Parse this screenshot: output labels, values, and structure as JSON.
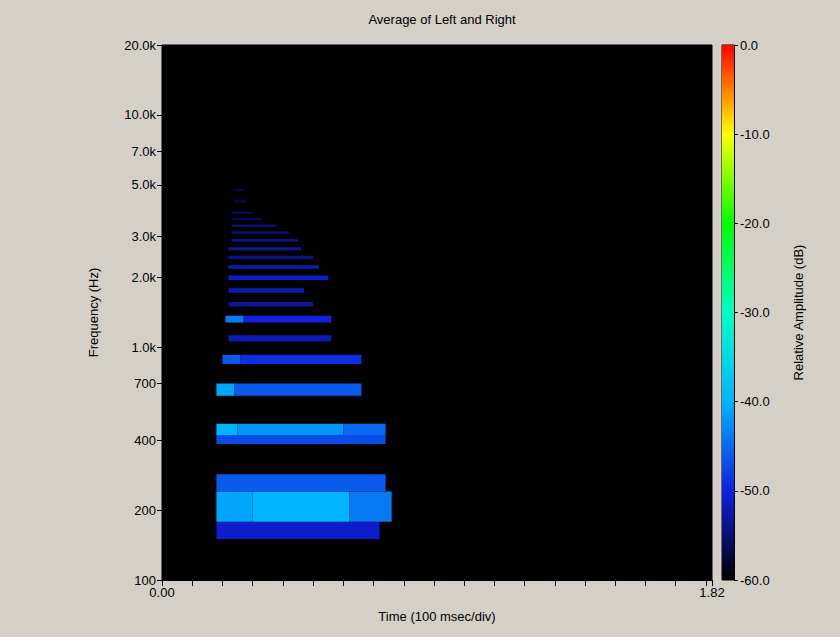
{
  "chart_data": {
    "type": "heatmap",
    "title": "Average of Left and Right",
    "x_label": "Time (100 msec/div)",
    "y_label": "Frequency (Hz)",
    "xlim": [
      0,
      1.82
    ],
    "xticks": [
      {
        "value": 0,
        "label": "0.00"
      },
      {
        "value": 1.82,
        "label": "1.82"
      }
    ],
    "xminorticks": [
      0.1,
      0.2,
      0.3,
      0.4,
      0.5,
      0.6,
      0.7,
      0.8,
      0.9,
      1.0,
      1.1,
      1.2,
      1.3,
      1.4,
      1.5,
      1.6,
      1.7,
      1.8
    ],
    "ylim": [
      100,
      20000
    ],
    "yticks": [
      100,
      200,
      400,
      700,
      {
        "value": 1000,
        "label": "1.0k"
      },
      {
        "value": 2000,
        "label": "2.0k"
      },
      {
        "value": 3000,
        "label": "3.0k"
      },
      {
        "value": 5000,
        "label": "5.0k"
      },
      {
        "value": 7000,
        "label": "7.0k"
      },
      {
        "value": 10000,
        "label": "10.0k"
      },
      {
        "value": 20000,
        "label": "20.0k"
      }
    ],
    "log": "y",
    "grid": false,
    "cells": [
      {
        "start": 0.18,
        "end": 0.72,
        "low": 150,
        "high": 178,
        "db": -51
      },
      {
        "start": 0.18,
        "end": 0.3,
        "low": 178,
        "high": 240,
        "db": -41
      },
      {
        "start": 0.3,
        "end": 0.62,
        "low": 178,
        "high": 240,
        "db": -40
      },
      {
        "start": 0.62,
        "end": 0.76,
        "low": 178,
        "high": 240,
        "db": -44
      },
      {
        "start": 0.18,
        "end": 0.74,
        "low": 240,
        "high": 285,
        "db": -46
      },
      {
        "start": 0.18,
        "end": 0.74,
        "low": 385,
        "high": 420,
        "db": -47
      },
      {
        "start": 0.18,
        "end": 0.25,
        "low": 420,
        "high": 470,
        "db": -40
      },
      {
        "start": 0.25,
        "end": 0.6,
        "low": 420,
        "high": 470,
        "db": -42
      },
      {
        "start": 0.6,
        "end": 0.74,
        "low": 420,
        "high": 470,
        "db": -45
      },
      {
        "start": 0.18,
        "end": 0.24,
        "low": 620,
        "high": 700,
        "db": -41
      },
      {
        "start": 0.24,
        "end": 0.66,
        "low": 620,
        "high": 700,
        "db": -46
      },
      {
        "start": 0.2,
        "end": 0.26,
        "low": 850,
        "high": 930,
        "db": -46
      },
      {
        "start": 0.26,
        "end": 0.66,
        "low": 850,
        "high": 930,
        "db": -49
      },
      {
        "start": 0.22,
        "end": 0.56,
        "low": 1060,
        "high": 1130,
        "db": -52
      },
      {
        "start": 0.21,
        "end": 0.27,
        "low": 1280,
        "high": 1370,
        "db": -44
      },
      {
        "start": 0.27,
        "end": 0.56,
        "low": 1280,
        "high": 1370,
        "db": -50
      },
      {
        "start": 0.22,
        "end": 0.5,
        "low": 1500,
        "high": 1570,
        "db": -53
      },
      {
        "start": 0.22,
        "end": 0.47,
        "low": 1720,
        "high": 1800,
        "db": -52
      },
      {
        "start": 0.22,
        "end": 0.55,
        "low": 1950,
        "high": 2040,
        "db": -51
      },
      {
        "start": 0.22,
        "end": 0.52,
        "low": 2180,
        "high": 2260,
        "db": -52
      },
      {
        "start": 0.22,
        "end": 0.5,
        "low": 2400,
        "high": 2480,
        "db": -54
      },
      {
        "start": 0.22,
        "end": 0.46,
        "low": 2620,
        "high": 2700,
        "db": -53
      },
      {
        "start": 0.23,
        "end": 0.45,
        "low": 2850,
        "high": 2930,
        "db": -54
      },
      {
        "start": 0.23,
        "end": 0.42,
        "low": 3080,
        "high": 3160,
        "db": -55
      },
      {
        "start": 0.23,
        "end": 0.38,
        "low": 3300,
        "high": 3380,
        "db": -55
      },
      {
        "start": 0.23,
        "end": 0.33,
        "low": 3530,
        "high": 3610,
        "db": -56
      },
      {
        "start": 0.23,
        "end": 0.3,
        "low": 3760,
        "high": 3840,
        "db": -56
      },
      {
        "start": 0.24,
        "end": 0.28,
        "low": 4200,
        "high": 4300,
        "db": -57
      },
      {
        "start": 0.24,
        "end": 0.27,
        "low": 4700,
        "high": 4800,
        "db": -57
      }
    ],
    "colorbar": {
      "title": "Relative Amplitude (dB)",
      "range": [
        -60,
        0
      ],
      "ticks": [
        {
          "value": 0,
          "label": "0.0"
        },
        {
          "value": -10,
          "label": "-10.0"
        },
        {
          "value": -20,
          "label": "-20.0"
        },
        {
          "value": -30,
          "label": "-30.0"
        },
        {
          "value": -40,
          "label": "-40.0"
        },
        {
          "value": -50,
          "label": "-50.0"
        },
        {
          "value": -60,
          "label": "-60.0"
        }
      ]
    }
  }
}
